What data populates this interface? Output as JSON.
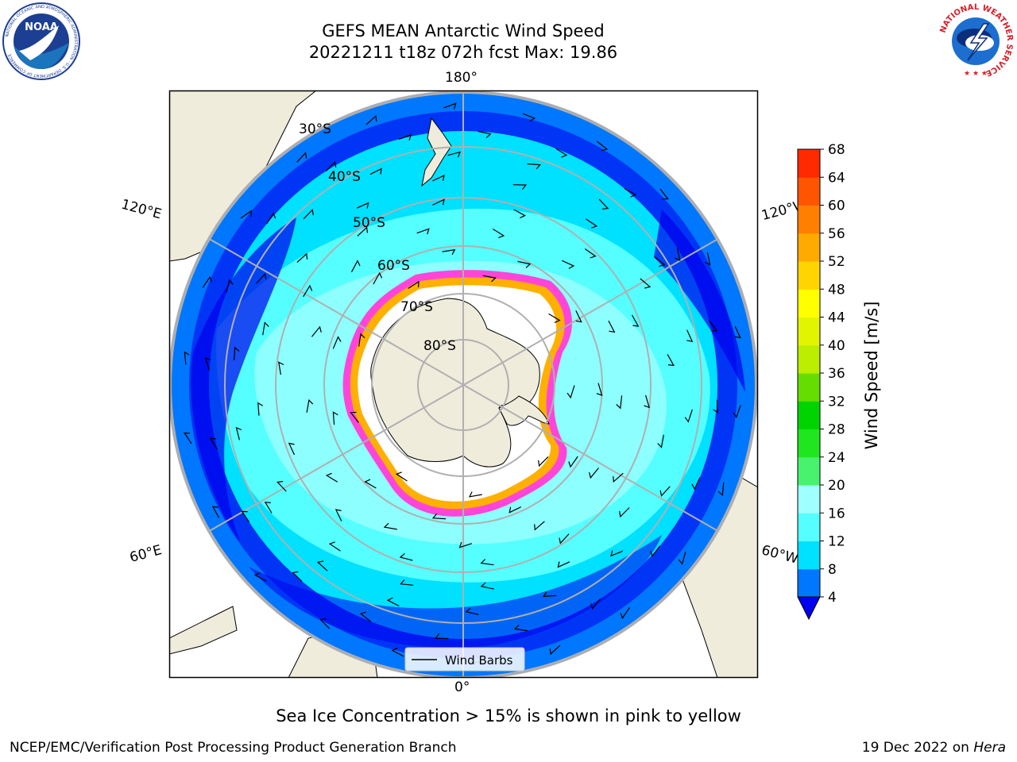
{
  "header": {
    "title_line1": "GEFS MEAN Antarctic Wind Speed",
    "title_line2": "20221211 t18z 072h fcst   Max: 19.86"
  },
  "logos": {
    "noaa_text": "NOAA",
    "noaa_ring_text": "NATIONAL OCEANIC AND ATMOSPHERIC ADMINISTRATION · U.S. DEPARTMENT OF COMMERCE",
    "nws_ring_text": "NATIONAL WEATHER SERVICE"
  },
  "map": {
    "projection": "south-polar-stereographic",
    "longitude_labels": {
      "top": "180°",
      "bottom": "0°",
      "upper_left": "120°E",
      "upper_right": "120°W",
      "lower_left": "60°E",
      "lower_right": "60°W"
    },
    "latitude_labels": [
      "30°S",
      "40°S",
      "50°S",
      "60°S",
      "70°S",
      "80°S"
    ],
    "legend_label": "Wind Barbs"
  },
  "colorbar": {
    "label": "Wind Speed [m/s]",
    "ticks": [
      "4",
      "8",
      "12",
      "16",
      "20",
      "24",
      "28",
      "32",
      "36",
      "40",
      "44",
      "48",
      "52",
      "56",
      "60",
      "64",
      "68"
    ],
    "colors": [
      "#0000ee",
      "#0077ff",
      "#00e0ff",
      "#55ffff",
      "#a0ffff",
      "#48f26e",
      "#1fe61f",
      "#00d400",
      "#66dd00",
      "#bbee00",
      "#e2f500",
      "#ffff00",
      "#ffd400",
      "#ffaa00",
      "#ff8000",
      "#ff5500",
      "#ff2a00",
      "#ff0000"
    ]
  },
  "footer": {
    "note": "Sea Ice Concentration > 15% is shown in pink to yellow",
    "credit": "NCEP/EMC/Verification Post Processing Product Generation Branch",
    "date": "19 Dec 2022 on ",
    "machine": "Hera"
  }
}
